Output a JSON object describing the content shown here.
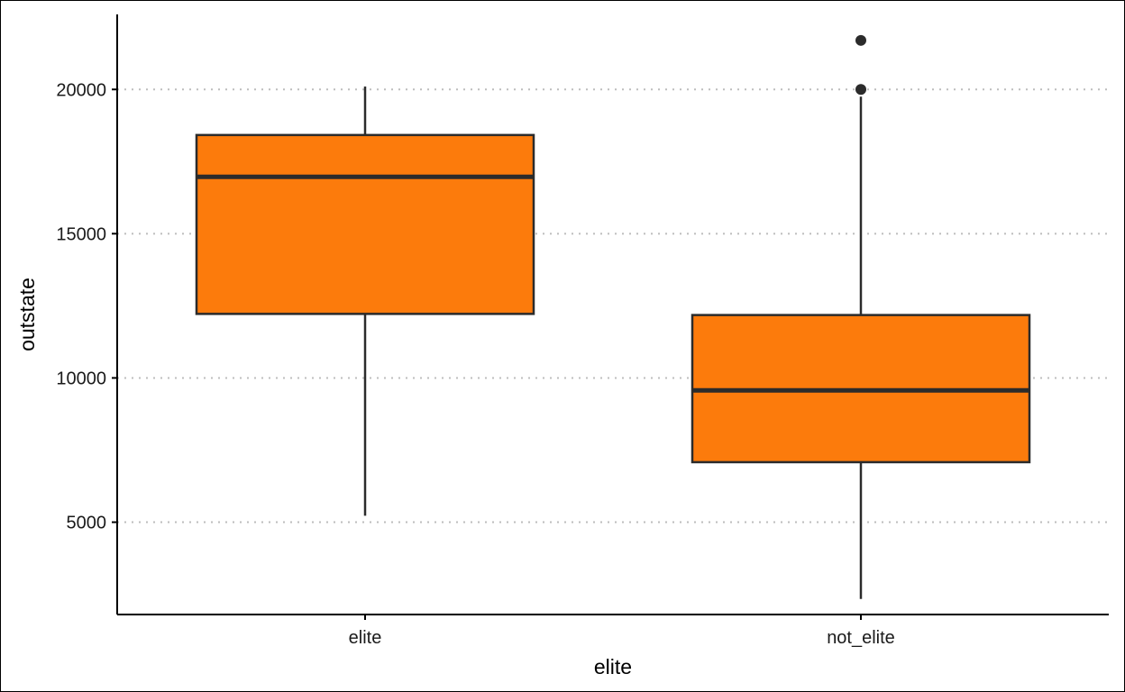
{
  "chart_data": {
    "type": "boxplot",
    "title": "",
    "xlabel": "elite",
    "ylabel": "outstate",
    "ylim": [
      1800,
      22600
    ],
    "yticks": [
      5000,
      10000,
      15000,
      20000
    ],
    "grid": "horizontal-dotted",
    "colors": {
      "box_fill": "#FC7B0C",
      "box_stroke": "#2B2B2B",
      "grid": "#BDBDBD",
      "axis": "#000000"
    },
    "categories": [
      "elite",
      "not_elite"
    ],
    "boxes": [
      {
        "category": "elite",
        "whisker_low": 5224,
        "q1": 12220,
        "median": 16970,
        "q3": 18420,
        "whisker_high": 20100,
        "outliers": []
      },
      {
        "category": "not_elite",
        "whisker_low": 2340,
        "q1": 7080,
        "median": 9570,
        "q3": 12180,
        "whisker_high": 19750,
        "outliers": [
          20000,
          21700
        ]
      }
    ]
  }
}
